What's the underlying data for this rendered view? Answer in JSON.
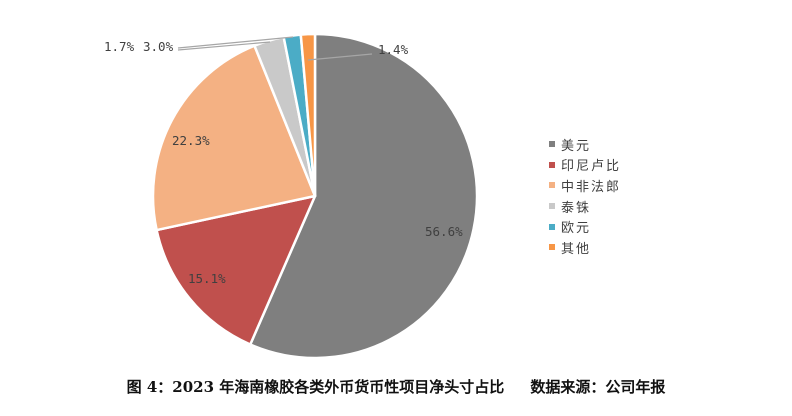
{
  "chart_data": {
    "type": "pie",
    "categories": [
      "美元",
      "印尼卢比",
      "中非法郎",
      "泰铢",
      "欧元",
      "其他"
    ],
    "values": [
      56.6,
      15.1,
      22.3,
      3.0,
      1.7,
      1.4
    ],
    "labels": [
      "56.6%",
      "15.1%",
      "22.3%",
      "3.0%",
      "1.7%",
      "1.4%"
    ],
    "colors": [
      "#7f7f7f",
      "#c0504d",
      "#f4b183",
      "#c9c9c9",
      "#4bacc6",
      "#f79646"
    ],
    "legend_position": "right"
  },
  "caption": {
    "figure_label": "图 4：2023 年海南橡胶各类外币货币性项目净头寸占比",
    "source": "数据来源：公司年报"
  }
}
